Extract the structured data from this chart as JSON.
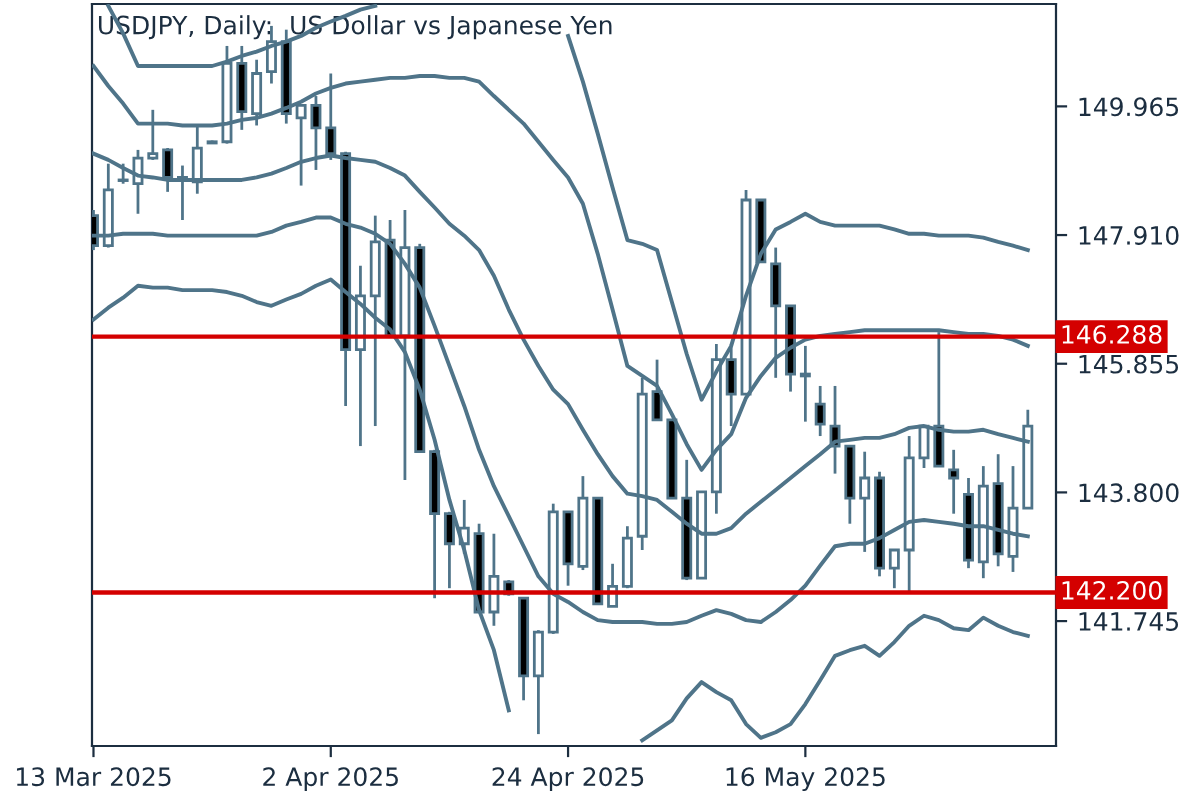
{
  "chart_data": {
    "type": "candlestick",
    "title": "USDJPY, Daily:  US Dollar vs Japanese Yen",
    "categories": [
      "13 Mar 2025",
      null,
      null,
      null,
      null,
      null,
      null,
      null,
      null,
      null,
      null,
      null,
      null,
      null,
      null,
      null,
      "2 Apr 2025",
      null,
      null,
      null,
      null,
      null,
      null,
      null,
      null,
      null,
      null,
      null,
      null,
      null,
      null,
      null,
      "24 Apr 2025",
      null,
      null,
      null,
      null,
      null,
      null,
      null,
      null,
      null,
      null,
      null,
      null,
      null,
      null,
      null,
      "16 May 2025",
      null,
      null,
      null,
      null,
      null,
      null,
      null,
      null,
      null,
      null,
      null,
      null,
      null,
      null,
      null
    ],
    "ohlc": [
      [
        148.22,
        148.31,
        147.67,
        147.74
      ],
      [
        147.74,
        149.05,
        147.71,
        148.63
      ],
      [
        148.79,
        149.05,
        148.73,
        148.78
      ],
      [
        148.73,
        149.27,
        148.25,
        149.14
      ],
      [
        149.14,
        149.91,
        149.11,
        149.21
      ],
      [
        149.27,
        149.3,
        148.6,
        148.83
      ],
      [
        148.83,
        149.02,
        148.15,
        148.78
      ],
      [
        148.76,
        149.66,
        148.57,
        149.3
      ],
      [
        149.4,
        149.42,
        149.37,
        149.38
      ],
      [
        149.4,
        150.93,
        149.37,
        150.65
      ],
      [
        150.65,
        150.93,
        149.59,
        149.88
      ],
      [
        149.85,
        150.71,
        149.66,
        150.49
      ],
      [
        150.52,
        151.25,
        150.33,
        151.0
      ],
      [
        151.0,
        151.19,
        149.69,
        149.85
      ],
      [
        149.78,
        149.98,
        148.7,
        149.98
      ],
      [
        149.98,
        150.13,
        148.95,
        149.62
      ],
      [
        149.62,
        150.49,
        149.11,
        149.21
      ],
      [
        149.21,
        149.24,
        145.18,
        146.08
      ],
      [
        146.08,
        147.42,
        144.54,
        146.94
      ],
      [
        146.94,
        148.22,
        144.86,
        147.8
      ],
      [
        147.83,
        148.15,
        146.27,
        146.3
      ],
      [
        146.3,
        148.31,
        144.0,
        147.71
      ],
      [
        147.71,
        147.77,
        144.45,
        144.45
      ],
      [
        144.45,
        144.48,
        142.11,
        143.46
      ],
      [
        143.46,
        143.49,
        142.27,
        142.98
      ],
      [
        142.98,
        143.68,
        142.82,
        143.23
      ],
      [
        143.14,
        143.3,
        141.89,
        141.89
      ],
      [
        141.89,
        143.14,
        141.67,
        142.46
      ],
      [
        142.37,
        142.4,
        142.15,
        142.18
      ],
      [
        142.11,
        142.11,
        140.48,
        140.87
      ],
      [
        140.87,
        141.6,
        139.94,
        141.57
      ],
      [
        141.57,
        143.62,
        141.54,
        143.49
      ],
      [
        143.49,
        143.49,
        142.31,
        142.66
      ],
      [
        142.62,
        144.06,
        142.56,
        143.71
      ],
      [
        143.71,
        143.71,
        142.02,
        142.02
      ],
      [
        141.98,
        142.66,
        141.98,
        142.3
      ],
      [
        142.3,
        143.26,
        142.27,
        143.07
      ],
      [
        143.1,
        145.63,
        142.88,
        145.37
      ],
      [
        145.41,
        145.92,
        144.96,
        144.96
      ],
      [
        144.96,
        144.96,
        143.71,
        143.71
      ],
      [
        143.71,
        144.32,
        142.4,
        142.43
      ],
      [
        142.43,
        143.81,
        142.43,
        143.81
      ],
      [
        143.81,
        146.17,
        143.46,
        145.92
      ],
      [
        145.92,
        146.17,
        144.86,
        145.37
      ],
      [
        145.37,
        148.63,
        145.37,
        148.47
      ],
      [
        148.47,
        148.47,
        147.48,
        147.48
      ],
      [
        147.45,
        147.71,
        145.63,
        146.78
      ],
      [
        146.78,
        146.78,
        145.41,
        145.69
      ],
      [
        145.69,
        146.14,
        144.93,
        145.66
      ],
      [
        145.21,
        145.5,
        144.7,
        144.89
      ],
      [
        144.86,
        145.5,
        144.1,
        144.54
      ],
      [
        144.54,
        144.54,
        143.3,
        143.71
      ],
      [
        143.71,
        144.45,
        142.85,
        144.03
      ],
      [
        144.03,
        144.13,
        142.46,
        142.59
      ],
      [
        142.59,
        142.88,
        142.27,
        142.88
      ],
      [
        142.88,
        144.7,
        142.18,
        144.35
      ],
      [
        144.35,
        144.86,
        144.19,
        144.86
      ],
      [
        144.86,
        146.36,
        144.22,
        144.22
      ],
      [
        144.16,
        144.48,
        143.46,
        144.03
      ],
      [
        143.77,
        144.03,
        142.59,
        142.72
      ],
      [
        142.69,
        144.22,
        142.43,
        143.9
      ],
      [
        143.94,
        144.41,
        142.62,
        142.82
      ],
      [
        142.78,
        144.22,
        142.53,
        143.55
      ],
      [
        143.55,
        145.12,
        143.55,
        144.86
      ]
    ],
    "series": [
      {
        "type": "line",
        "color": "#4f7489",
        "values": [
          null,
          151.57,
          151.13,
          150.61,
          150.61,
          150.61,
          150.61,
          150.61,
          150.61,
          150.68,
          150.77,
          150.84,
          150.93,
          151.0,
          151.09,
          151.22,
          151.32,
          151.41,
          151.51,
          151.57,
          null,
          null,
          null,
          null,
          null,
          null,
          null,
          null,
          null,
          null,
          null,
          null,
          151.09,
          150.36,
          149.53,
          148.67,
          147.83,
          147.77,
          147.67,
          146.84,
          146.01,
          145.28,
          145.73,
          146.14,
          146.94,
          147.61,
          148.0,
          148.12,
          148.25,
          148.12,
          148.06,
          148.06,
          148.06,
          148.06,
          148.0,
          147.93,
          147.93,
          147.9,
          147.9,
          147.9,
          147.87,
          147.8,
          147.74,
          147.67
        ]
      },
      {
        "type": "line",
        "color": "#4f7489",
        "values": [
          150.61,
          150.29,
          150.01,
          149.69,
          149.69,
          149.69,
          149.66,
          149.66,
          149.66,
          149.69,
          149.75,
          149.78,
          149.85,
          149.94,
          150.04,
          150.17,
          150.26,
          150.33,
          150.36,
          150.39,
          150.42,
          150.42,
          150.45,
          150.45,
          150.42,
          150.42,
          150.36,
          150.13,
          149.91,
          149.69,
          149.4,
          149.11,
          148.83,
          148.41,
          147.61,
          146.72,
          145.82,
          145.66,
          145.5,
          145.05,
          144.57,
          144.16,
          144.48,
          144.73,
          145.31,
          145.66,
          145.95,
          146.11,
          146.24,
          146.3,
          146.33,
          146.36,
          146.39,
          146.39,
          146.39,
          146.39,
          146.39,
          146.39,
          146.36,
          146.33,
          146.33,
          146.3,
          146.24,
          146.14
        ]
      },
      {
        "type": "line",
        "color": "#4f7489",
        "values": [
          149.21,
          149.11,
          148.98,
          148.86,
          148.83,
          148.79,
          148.79,
          148.79,
          148.79,
          148.79,
          148.79,
          148.83,
          148.89,
          148.98,
          149.08,
          149.14,
          149.18,
          149.14,
          149.11,
          149.08,
          148.98,
          148.86,
          148.6,
          148.35,
          148.09,
          147.9,
          147.67,
          147.26,
          146.72,
          146.24,
          145.82,
          145.44,
          145.21,
          144.8,
          144.41,
          144.06,
          143.78,
          143.74,
          143.68,
          143.49,
          143.3,
          143.14,
          143.14,
          143.23,
          143.46,
          143.65,
          143.84,
          144.03,
          144.22,
          144.41,
          144.61,
          144.64,
          144.67,
          144.67,
          144.73,
          144.83,
          144.86,
          144.8,
          144.77,
          144.77,
          144.8,
          144.73,
          144.67,
          144.61
        ]
      },
      {
        "type": "line",
        "color": "#4f7489",
        "values": [
          147.9,
          147.9,
          147.93,
          147.93,
          147.93,
          147.9,
          147.9,
          147.9,
          147.9,
          147.9,
          147.9,
          147.9,
          147.96,
          148.06,
          148.12,
          148.19,
          148.19,
          148.09,
          148.03,
          147.93,
          147.77,
          147.45,
          147.07,
          146.46,
          145.82,
          145.18,
          144.48,
          143.9,
          143.42,
          142.94,
          142.46,
          142.18,
          142.05,
          141.89,
          141.76,
          141.73,
          141.73,
          141.73,
          141.7,
          141.7,
          141.73,
          141.83,
          141.92,
          141.86,
          141.76,
          141.73,
          141.89,
          142.08,
          142.31,
          142.63,
          142.94,
          142.98,
          142.98,
          143.07,
          143.2,
          143.33,
          143.36,
          143.33,
          143.3,
          143.26,
          143.26,
          143.2,
          143.14,
          143.1
        ]
      },
      {
        "type": "line",
        "color": "#4f7489",
        "values": [
          146.56,
          146.75,
          146.91,
          147.1,
          147.07,
          147.07,
          147.03,
          147.03,
          147.03,
          147.0,
          146.94,
          146.84,
          146.78,
          146.88,
          146.97,
          147.1,
          147.2,
          147.0,
          146.81,
          146.59,
          146.4,
          146.04,
          145.44,
          144.64,
          143.68,
          142.88,
          141.92,
          141.28,
          140.32,
          null,
          null,
          null,
          null,
          null,
          null,
          null,
          null,
          139.84,
          140.0,
          140.16,
          140.51,
          140.77,
          140.61,
          140.48,
          140.1,
          139.88,
          139.97,
          140.1,
          140.42,
          140.8,
          141.19,
          141.28,
          141.35,
          141.19,
          141.41,
          141.67,
          141.83,
          141.76,
          141.63,
          141.6,
          141.8,
          141.67,
          141.57,
          141.51
        ]
      }
    ],
    "ylim": [
      139.75,
      151.6
    ],
    "yticks": [
      149.965,
      {
        "value": 147.91,
        "label": "147.910"
      },
      145.855,
      {
        "value": 143.8,
        "label": "143.800"
      },
      141.745
    ],
    "ref_lines": [
      {
        "axis": "y",
        "value": 146.288,
        "label": "146.288",
        "color": "#d40000"
      },
      {
        "axis": "y",
        "value": 142.2,
        "label": "142.200",
        "color": "#d40000"
      }
    ],
    "grid": false,
    "legend": false
  }
}
